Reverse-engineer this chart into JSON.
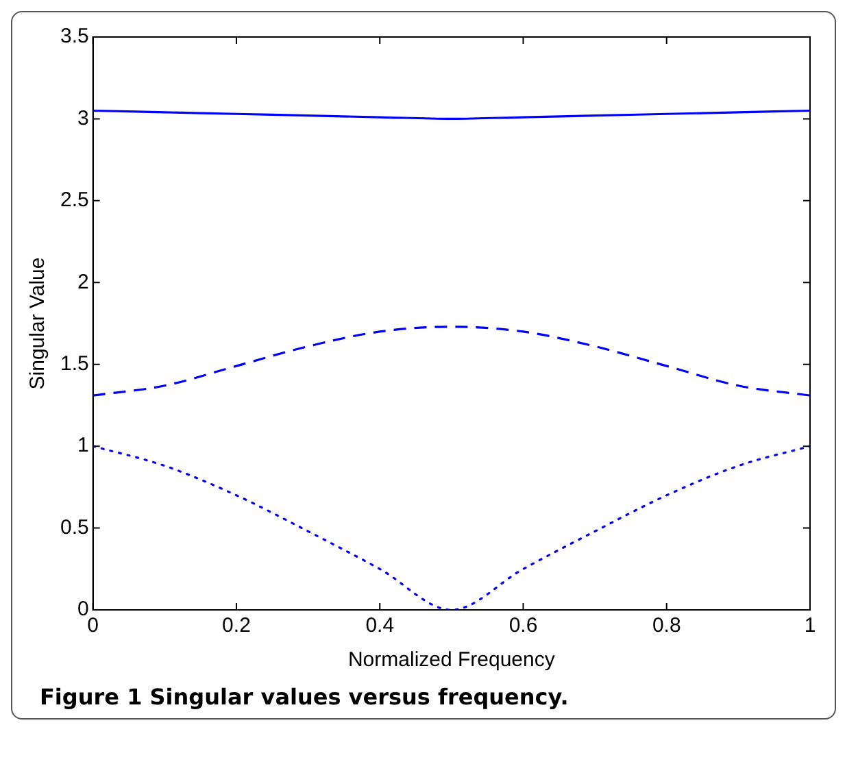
{
  "chart_data": {
    "type": "line",
    "xlabel": "Normalized Frequency",
    "ylabel": "Singular Value",
    "x": [
      0,
      0.1,
      0.2,
      0.3,
      0.4,
      0.5,
      0.6,
      0.7,
      0.8,
      0.9,
      1
    ],
    "series": [
      {
        "color": "#0000ff",
        "line_style": "solid",
        "values": [
          3.05,
          3.04,
          3.03,
          3.02,
          3.01,
          3.0,
          3.01,
          3.02,
          3.03,
          3.04,
          3.05
        ]
      },
      {
        "color": "#0000ff",
        "line_style": "dashed",
        "values": [
          1.31,
          1.37,
          1.49,
          1.61,
          1.7,
          1.73,
          1.7,
          1.61,
          1.49,
          1.37,
          1.31
        ]
      },
      {
        "color": "#0000ff",
        "line_style": "dotted",
        "values": [
          1.0,
          0.88,
          0.7,
          0.48,
          0.25,
          0.0,
          0.25,
          0.48,
          0.7,
          0.88,
          1.0
        ]
      }
    ],
    "xlim": [
      0,
      1
    ],
    "xticks": [
      0,
      0.2,
      0.4,
      0.6,
      0.8,
      1
    ],
    "ylim": [
      0,
      3.5
    ],
    "yticks": [
      0,
      0.5,
      1,
      1.5,
      2,
      2.5,
      3,
      3.5
    ],
    "grid": false,
    "legend": false,
    "marker": "none",
    "annotations": [
      "Figure 1 Singular values versus frequency."
    ]
  }
}
